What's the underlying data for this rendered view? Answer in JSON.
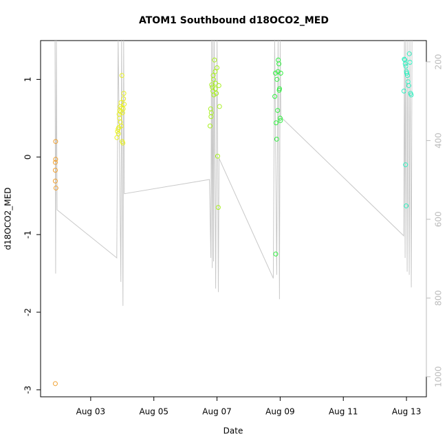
{
  "chart_data": {
    "type": "scatter",
    "title": "ATOM1 Southbound d18OCO2_MED",
    "x_label": "Date",
    "y_label": "d18OCO2_MED",
    "xlim": [
      1.413,
      13.63
    ],
    "xticks": [
      {
        "value": 3,
        "label": "Aug 03"
      },
      {
        "value": 5,
        "label": "Aug 05"
      },
      {
        "value": 7,
        "label": "Aug 07"
      },
      {
        "value": 9,
        "label": "Aug 09"
      },
      {
        "value": 11,
        "label": "Aug 11"
      },
      {
        "value": 13,
        "label": "Aug 13"
      }
    ],
    "ylim": [
      -3.09,
      1.5
    ],
    "yticks": [
      -3,
      -2,
      -1,
      0,
      1
    ],
    "y2lim": [
      146,
      1051
    ],
    "y2_reversed": true,
    "y2ticks": [
      200,
      400,
      600,
      800,
      1000
    ],
    "series": [
      {
        "color": "#f0a030",
        "x": [
          1.89,
          1.89,
          1.88,
          1.88,
          1.88,
          1.9,
          1.88
        ],
        "values": [
          0.2,
          -0.03,
          -0.07,
          -0.17,
          -0.31,
          -0.4,
          -2.92
        ]
      },
      {
        "color": "#e8f020",
        "x": [
          3.83,
          3.85,
          3.87,
          3.89,
          3.9,
          3.92,
          3.93,
          3.95,
          3.96,
          3.98,
          3.99,
          4.0,
          4.02,
          4.04,
          4.05,
          4.06,
          3.88,
          3.94,
          3.97,
          4.01,
          4.03,
          3.91
        ],
        "values": [
          0.25,
          0.33,
          0.36,
          0.38,
          0.55,
          0.6,
          0.65,
          0.58,
          0.7,
          0.63,
          1.05,
          0.2,
          0.18,
          0.75,
          0.82,
          0.68,
          0.3,
          0.45,
          0.4,
          0.57,
          0.62,
          0.5
        ]
      },
      {
        "color": "#a8f020",
        "x": [
          6.78,
          6.8,
          6.81,
          6.83,
          6.85,
          6.87,
          6.89,
          6.9,
          6.92,
          6.94,
          6.96,
          6.98,
          7.0,
          7.02,
          7.04,
          7.06,
          7.08,
          6.82,
          6.88,
          6.95
        ],
        "values": [
          0.4,
          0.62,
          0.52,
          0.93,
          0.9,
          0.85,
          1.0,
          0.8,
          1.25,
          1.1,
          0.95,
          0.82,
          1.15,
          0.01,
          -0.65,
          0.92,
          0.65,
          0.57,
          1.05,
          0.88
        ]
      },
      {
        "color": "#30f040",
        "x": [
          8.83,
          8.85,
          8.87,
          8.89,
          8.9,
          8.92,
          8.94,
          8.96,
          8.98,
          9.0,
          9.01,
          9.02,
          8.86,
          8.93,
          8.97
        ],
        "values": [
          0.78,
          1.08,
          0.44,
          0.23,
          1.0,
          0.6,
          1.25,
          1.2,
          0.88,
          0.5,
          0.47,
          1.08,
          -1.25,
          1.1,
          0.86
        ]
      },
      {
        "color": "#30f0c0",
        "x": [
          12.92,
          12.93,
          12.95,
          12.96,
          12.98,
          13.0,
          13.01,
          13.03,
          13.05,
          13.07,
          13.09,
          13.11,
          13.13,
          13.15,
          12.97,
          12.99
        ],
        "values": [
          0.85,
          1.26,
          1.25,
          1.2,
          1.17,
          1.1,
          1.08,
          1.05,
          0.97,
          0.92,
          1.33,
          1.22,
          0.82,
          0.8,
          -0.1,
          -0.63
        ]
      },
      {
        "type": "line",
        "axis": "y2",
        "color": "#c8c8c8",
        "x": [
          1.87,
          1.891,
          1.913,
          1.935,
          3.826,
          3.87,
          3.957,
          3.978,
          4.022,
          4.043,
          4.065,
          6.761,
          6.804,
          6.826,
          6.848,
          6.87,
          6.891,
          6.913,
          6.957,
          7.0,
          7.043,
          7.065,
          8.783,
          8.826,
          8.891,
          8.935,
          8.978,
          9.0,
          9.022,
          12.913,
          12.935,
          12.957,
          12.978,
          13.022,
          13.043,
          13.087,
          13.109,
          13.152,
          13.174
        ],
        "values": [
          140,
          738,
          140,
          576,
          698,
          140,
          759,
          140,
          820,
          140,
          535,
          499,
          698,
          140,
          724,
          140,
          707,
          140,
          776,
          140,
          785,
          445,
          750,
          140,
          741,
          140,
          803,
          140,
          340,
          642,
          140,
          698,
          140,
          733,
          140,
          741,
          140,
          773,
          140
        ]
      }
    ]
  }
}
